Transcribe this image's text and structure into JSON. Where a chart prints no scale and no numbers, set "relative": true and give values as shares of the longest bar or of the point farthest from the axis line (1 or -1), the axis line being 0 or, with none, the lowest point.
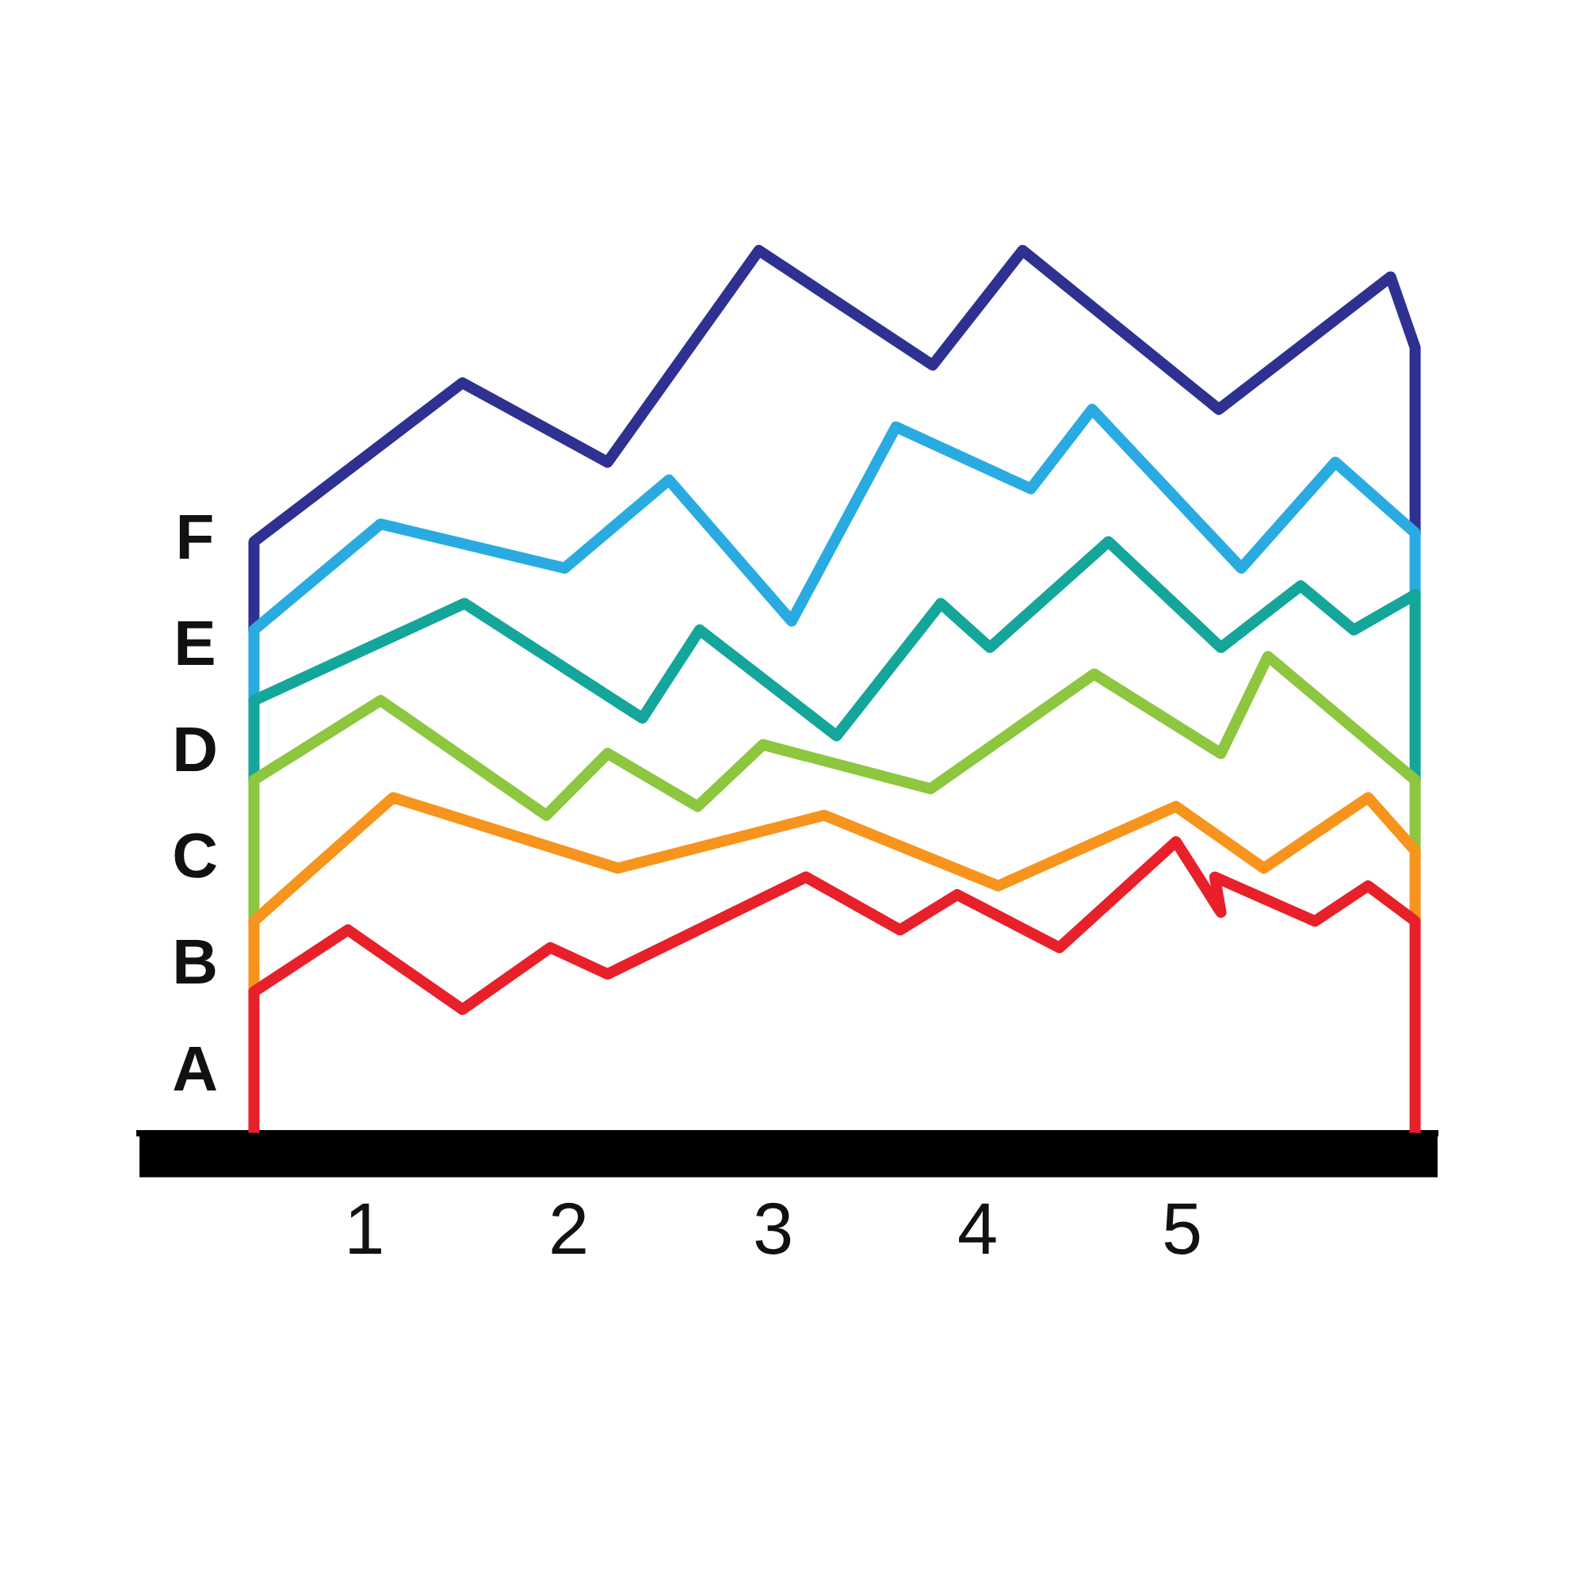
{
  "chart_data": {
    "type": "line",
    "relative": true,
    "xlim": [
      -0.1,
      6.25
    ],
    "xticks": [
      1,
      2,
      3,
      4,
      5
    ],
    "annotations": [
      "F",
      "E",
      "D",
      "C",
      "B",
      "A"
    ],
    "grid": false,
    "legend": false,
    "marker": "none",
    "line_style": "solid",
    "series": [
      {
        "color": "#e8202a",
        "x": [
          0.46,
          0.46,
          0.92,
          1.48,
          1.91,
          2.19,
          3.16,
          3.62,
          3.9,
          4.4,
          4.97,
          5.19,
          5.16,
          5.65,
          5.91,
          6.14,
          6.14
        ],
        "values": [
          0,
          0.16,
          0.23,
          0.14,
          0.21,
          0.18,
          0.29,
          0.23,
          0.27,
          0.21,
          0.33,
          0.25,
          0.29,
          0.24,
          0.28,
          0.24,
          0
        ]
      },
      {
        "color": "#f7941d",
        "x": [
          0.46,
          0.46,
          1.14,
          2.24,
          3.25,
          4.1,
          4.97,
          5.4,
          5.91,
          6.14,
          6.14
        ],
        "values": [
          0.16,
          0.24,
          0.38,
          0.3,
          0.36,
          0.28,
          0.37,
          0.3,
          0.38,
          0.32,
          0.24
        ]
      },
      {
        "color": "#8dc63f",
        "x": [
          0.46,
          0.46,
          1.08,
          1.89,
          2.19,
          2.63,
          2.95,
          3.77,
          4.57,
          5.19,
          5.42,
          6.14,
          6.14
        ],
        "values": [
          0.24,
          0.4,
          0.49,
          0.36,
          0.43,
          0.37,
          0.44,
          0.39,
          0.52,
          0.43,
          0.54,
          0.4,
          0.32
        ]
      },
      {
        "color": "#14a69a",
        "x": [
          0.46,
          0.46,
          1.49,
          2.36,
          2.64,
          3.31,
          3.82,
          4.06,
          4.64,
          5.19,
          5.58,
          5.84,
          6.14,
          6.14
        ],
        "values": [
          0.4,
          0.49,
          0.6,
          0.47,
          0.57,
          0.45,
          0.6,
          0.55,
          0.67,
          0.55,
          0.62,
          0.57,
          0.61,
          0.4
        ]
      },
      {
        "color": "#29abe2",
        "x": [
          0.46,
          0.46,
          1.08,
          1.98,
          2.49,
          3.09,
          3.6,
          4.26,
          4.56,
          5.29,
          5.75,
          6.14,
          6.14
        ],
        "values": [
          0.49,
          0.57,
          0.69,
          0.64,
          0.74,
          0.58,
          0.8,
          0.73,
          0.82,
          0.64,
          0.76,
          0.68,
          0.61
        ]
      },
      {
        "color": "#2e3192",
        "x": [
          0.46,
          0.46,
          1.48,
          2.19,
          2.93,
          3.78,
          4.22,
          5.18,
          6.02,
          6.14,
          6.14
        ],
        "values": [
          0.57,
          0.67,
          0.85,
          0.76,
          1,
          0.87,
          1,
          0.82,
          0.97,
          0.89,
          0.68
        ]
      }
    ]
  }
}
